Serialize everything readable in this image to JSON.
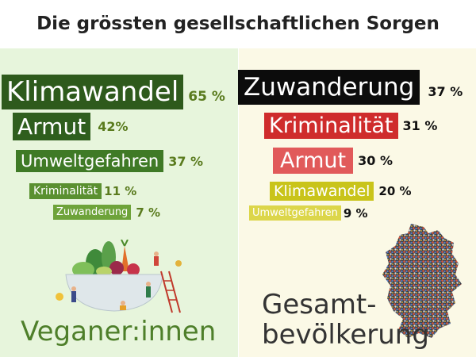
{
  "title": "Die grössten gesellschaftlichen Sorgen",
  "vegan": {
    "caption": "Veganer:innen",
    "items": [
      {
        "label": "Klimawandel",
        "pct": "65 %"
      },
      {
        "label": "Armut",
        "pct": "42%"
      },
      {
        "label": "Umweltgefahren",
        "pct": "37 %"
      },
      {
        "label": "Kriminalität",
        "pct": "11 %"
      },
      {
        "label": "Zuwanderung",
        "pct": "7 %"
      }
    ]
  },
  "general": {
    "caption_line1": "Gesamt-",
    "caption_line2": "bevölkerung",
    "items": [
      {
        "label": "Zuwanderung",
        "pct": "37 %"
      },
      {
        "label": "Kriminalität",
        "pct": "31 %"
      },
      {
        "label": "Armut",
        "pct": "30 %"
      },
      {
        "label": "Klimawandel",
        "pct": "20 %"
      },
      {
        "label": "Umweltgefahren",
        "pct": "9 %"
      }
    ]
  },
  "colors": {
    "green_dark": "#2e5a1c",
    "green_mid": "#3f7a26",
    "green_light": "#6ea33a",
    "black": "#0c0c0c",
    "red_dark": "#cf2c2c",
    "red_light": "#e15a5a",
    "yellow": "#c9c41a",
    "yellow_light": "#dcd64a"
  },
  "icons": [
    "vegetable-bowl-illustration",
    "germany-crowd-map-illustration"
  ]
}
